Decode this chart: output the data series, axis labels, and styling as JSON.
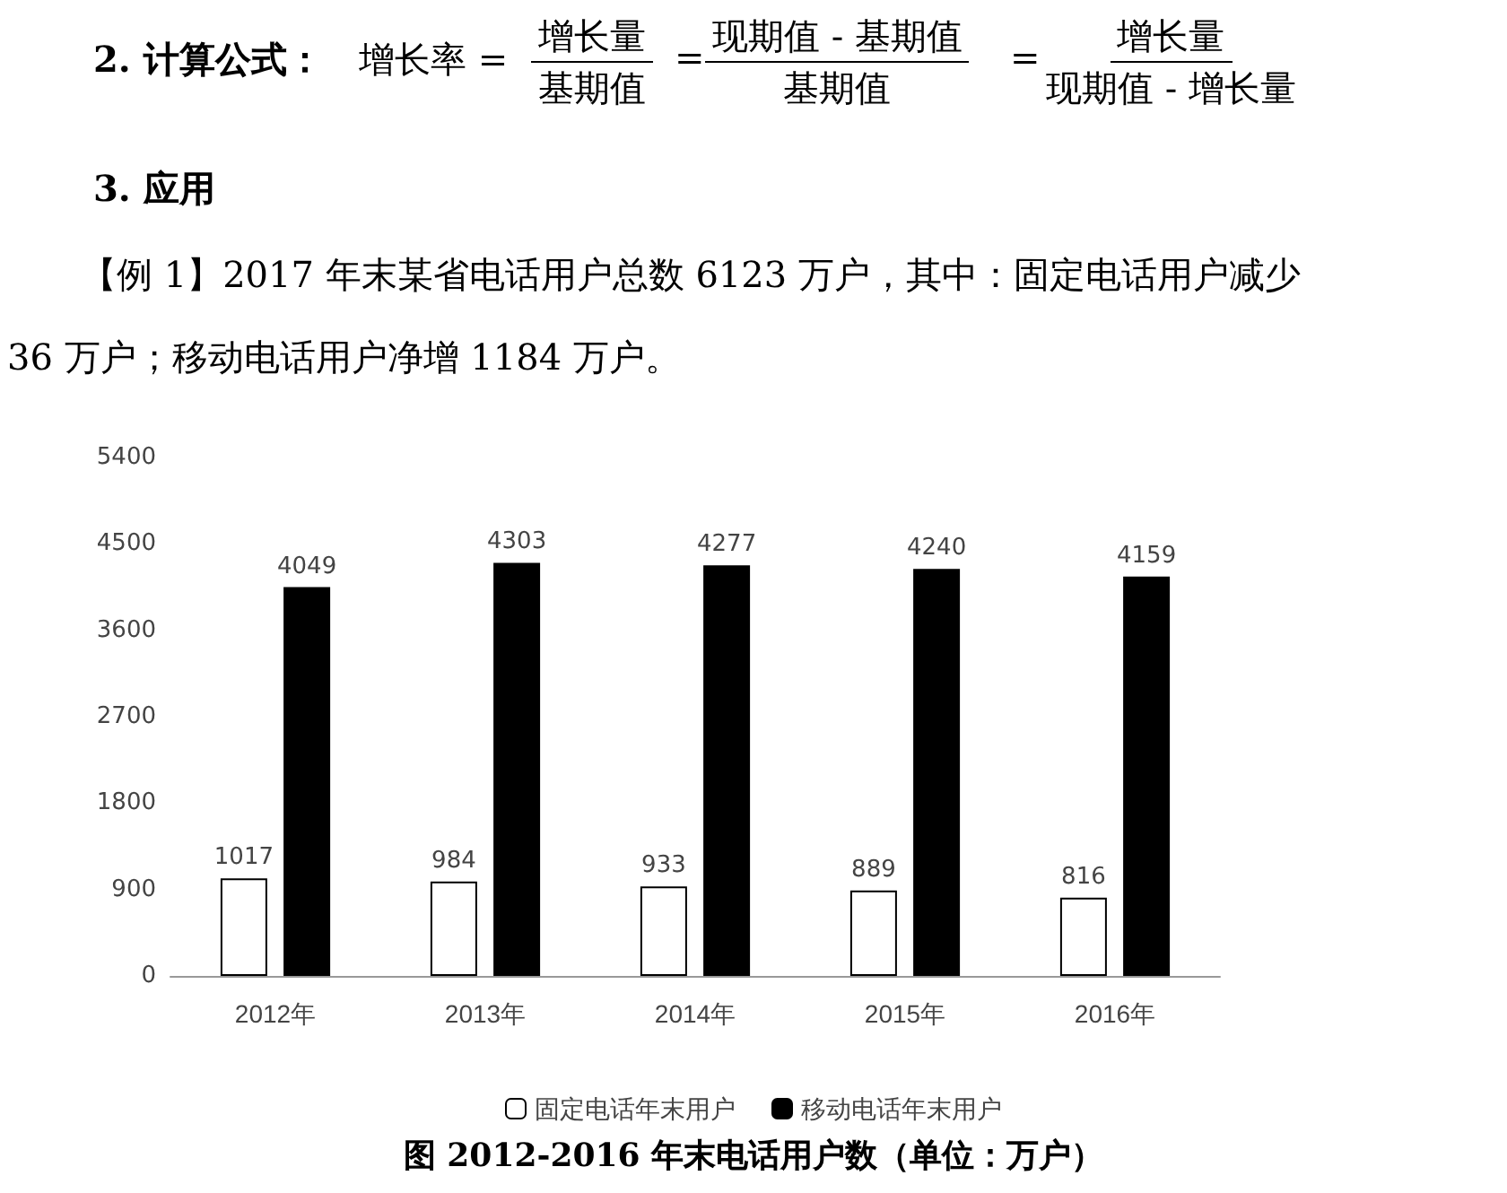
{
  "chart_data": {
    "type": "bar",
    "title": "图  2012-2016 年末电话用户数（单位：万户）",
    "annotations": [
      "2. 计算公式：",
      "增长率 =",
      "增长量",
      "基期值",
      "=",
      "现期值 - 基期值",
      "基期值",
      "=",
      "增长量",
      "现期值 - 增长量",
      "3. 应用",
      "【例 1】2017 年末某省电话用户总数 6123 万户，其中：固定电话用户减少",
      "36 万户；移动电话用户净增 1184 万户。"
    ],
    "categories": [
      "2012年",
      "2013年",
      "2014年",
      "2015年",
      "2016年"
    ],
    "series": [
      {
        "name": "固定电话年末用户",
        "color": "#ffffff",
        "values": [
          1017,
          984,
          933,
          889,
          816
        ]
      },
      {
        "name": "移动电话年末用户",
        "color": "#000000",
        "values": [
          4049,
          4303,
          4277,
          4240,
          4159
        ]
      }
    ],
    "ylim": [
      0,
      5400
    ],
    "yticks": [
      0,
      900,
      1800,
      2700,
      3600,
      4500,
      5400
    ],
    "grid": false,
    "legend": "bottom",
    "data_labels": true
  }
}
